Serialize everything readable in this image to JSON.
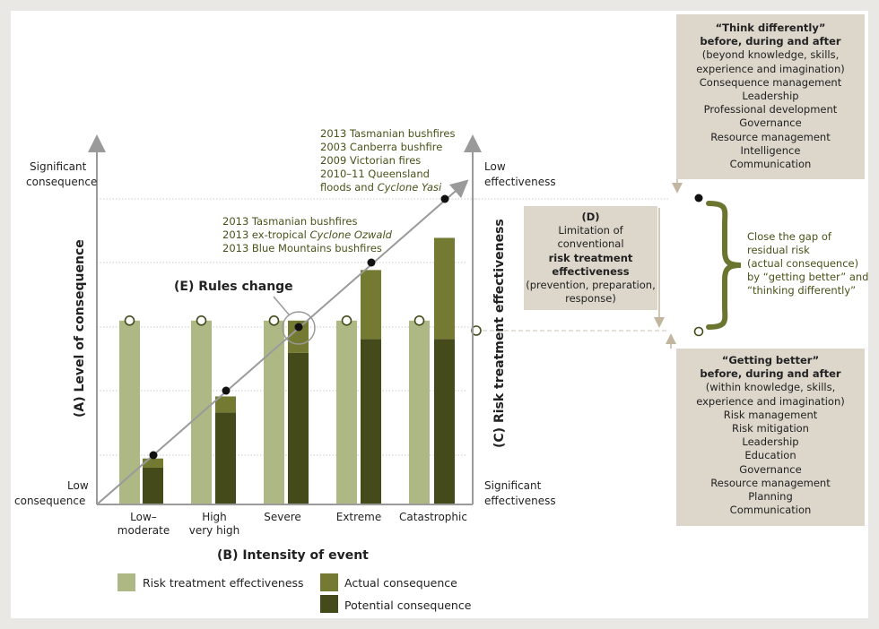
{
  "labels": {
    "axis_a": "(A) Level of consequence",
    "axis_b": "(B) Intensity of event",
    "axis_c": "(C) Risk treatment effectiveness",
    "rules_change": "(E) Rules change",
    "sig_consequence_1": "Significant",
    "sig_consequence_2": "consequence",
    "low_consequence_1": "Low",
    "low_consequence_2": "consequence",
    "low_effect_1": "Low",
    "low_effect_2": "effectiveness",
    "sig_effect_1": "Significant",
    "sig_effect_2": "effectiveness"
  },
  "events_top": {
    "l1": "2013 Tasmanian bushfires",
    "l2": "2003 Canberra bushfire",
    "l3": "2009 Victorian fires",
    "l4": "2010–11 Queensland",
    "l5a": "floods and ",
    "l5b": "Cyclone Yasi"
  },
  "events_mid": {
    "l1": "2013 Tasmanian bushfires",
    "l2a": "2013 ex-tropical ",
    "l2b": "Cyclone Ozwald",
    "l3": "2013 Blue Mountains bushfires"
  },
  "box_d": {
    "title": "(D)",
    "l1": "Limitation of",
    "l2": "conventional",
    "l3": "risk treatment",
    "l4": "effectiveness",
    "l5": "(prevention, preparation,",
    "l6": "response)"
  },
  "gap_text": [
    "Close the gap of",
    "residual risk",
    "(actual consequence)",
    "by “getting better” and",
    "“thinking differently”"
  ],
  "think_box": {
    "title": "“Think differently”",
    "subtitle": "before, during and after",
    "l1": "(beyond knowledge, skills,",
    "l2": "experience and imagination)",
    "items": [
      "Consequence management",
      "Leadership",
      "Professional development",
      "Governance",
      "Resource management",
      "Intelligence",
      "Communication"
    ]
  },
  "better_box": {
    "title": "“Getting better”",
    "subtitle": "before, during and after",
    "l1": "(within knowledge, skills,",
    "l2": "experience and imagination)",
    "items": [
      "Risk management",
      "Risk mitigation",
      "Leadership",
      "Education",
      "Governance",
      "Resource management",
      "Planning",
      "Communication"
    ]
  },
  "legend": {
    "rte": "Risk treatment effectiveness",
    "actual": "Actual consequence",
    "potential": "Potential consequence"
  },
  "colors": {
    "rte": "#adb885",
    "actual": "#747a31",
    "potential": "#454a1b",
    "box": "#dcd6cb",
    "brace": "#6b7530",
    "arrow": "#9a9a9a"
  },
  "chart_data": {
    "type": "bar",
    "categories": [
      "Low–\nmoderate",
      "High\nvery high",
      "Severe",
      "Extreme",
      "Catastrophic"
    ],
    "category_lines": [
      [
        "Low–",
        "moderate"
      ],
      [
        "High",
        "very high"
      ],
      [
        "Severe"
      ],
      [
        "Extreme"
      ],
      [
        "Catastrophic"
      ]
    ],
    "series": [
      {
        "name": "Risk treatment effectiveness",
        "values": [
          4,
          4,
          4,
          4,
          4
        ]
      },
      {
        "name": "Actual consequence",
        "values": [
          0.2,
          0.35,
          0.7,
          1.5,
          2.2
        ]
      },
      {
        "name": "Potential consequence",
        "values": [
          0.8,
          2.0,
          3.3,
          3.6,
          3.6
        ]
      }
    ],
    "ylim": [
      0,
      7.7
    ]
  }
}
